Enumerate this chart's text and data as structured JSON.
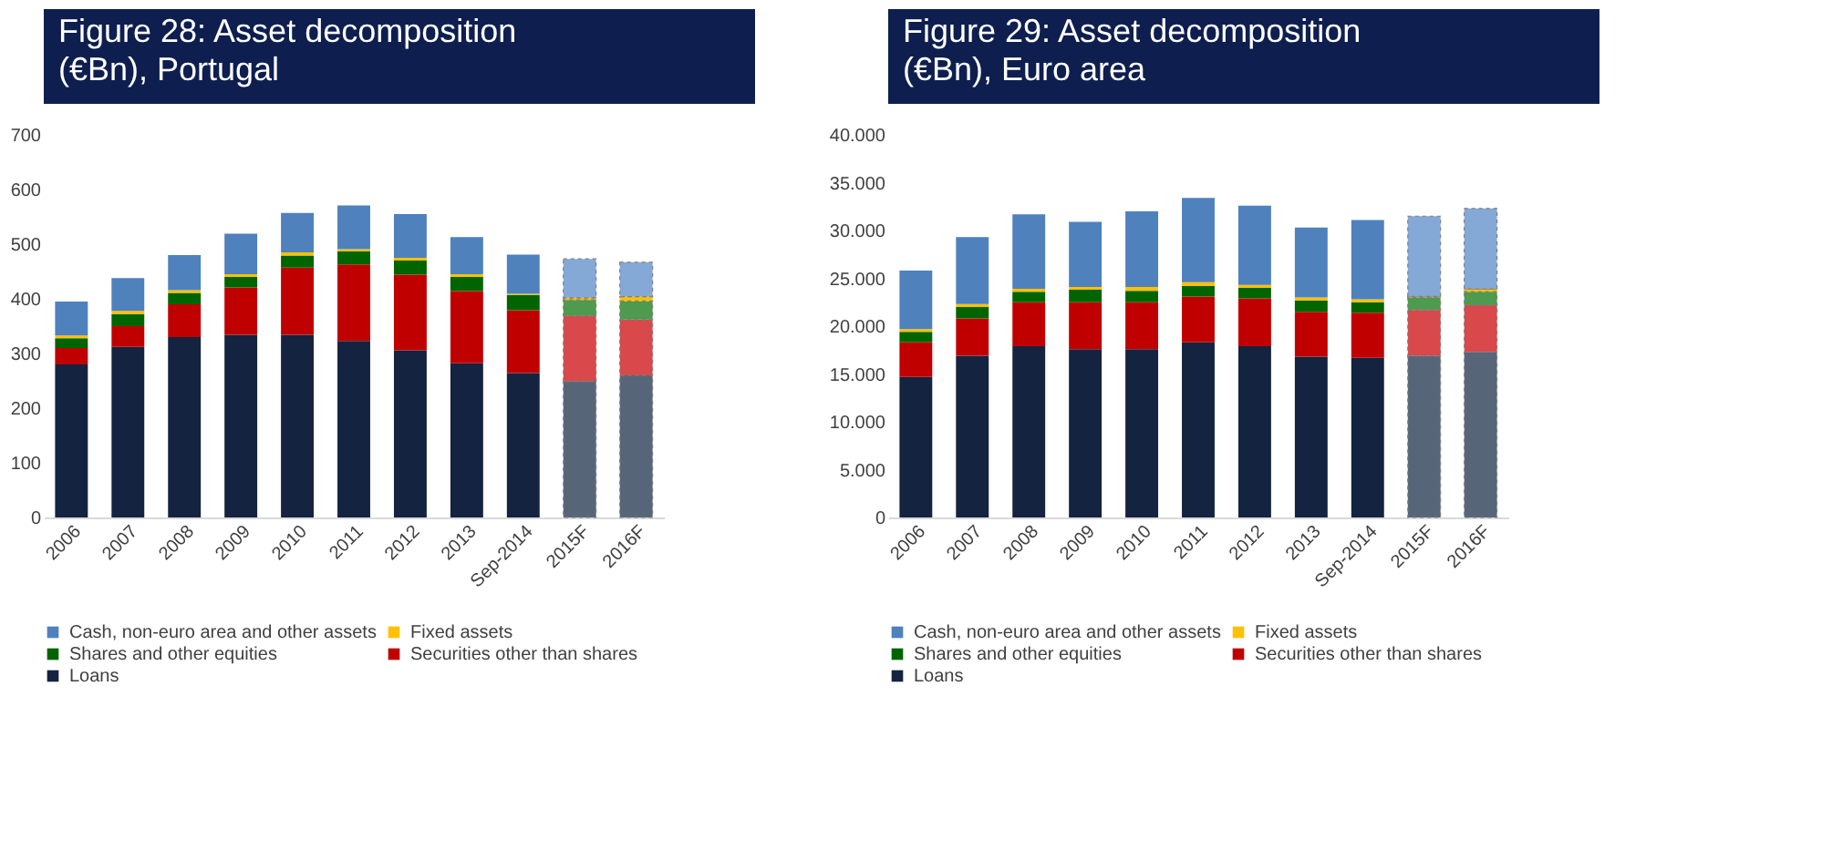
{
  "chart_data": [
    {
      "type": "bar",
      "stacked": true,
      "title": "Figure 28: Asset decomposition (€Bn), Portugal",
      "legend": "bottom",
      "grid": false,
      "categories": [
        "2006",
        "2007",
        "2008",
        "2009",
        "2010",
        "2011",
        "2012",
        "2013",
        "Sep-2014",
        "2015F",
        "2016F"
      ],
      "ylim": [
        0,
        700
      ],
      "yticks": [
        0,
        100,
        200,
        300,
        400,
        500,
        600,
        700
      ],
      "series": [
        {
          "name": "Loans",
          "color": "#14233f",
          "colors": [
            "#14233f",
            "#14233f",
            "#14233f",
            "#14233f",
            "#14233f",
            "#14233f",
            "#14233f",
            "#14233f",
            "#14233f",
            "#566678",
            "#566678"
          ],
          "values": [
            280,
            312,
            330,
            334,
            334,
            323,
            306,
            282,
            264,
            249,
            260
          ]
        },
        {
          "name": "Securities other than shares",
          "color": "#c00000",
          "colors": [
            "#c00000",
            "#c00000",
            "#c00000",
            "#c00000",
            "#c00000",
            "#c00000",
            "#c00000",
            "#c00000",
            "#c00000",
            "#d9484a",
            "#d9484a"
          ],
          "values": [
            30,
            38,
            60,
            87,
            123,
            140,
            138,
            132,
            115,
            120,
            102
          ]
        },
        {
          "name": "Shares and other equities",
          "color": "#006400",
          "colors": [
            "#006400",
            "#006400",
            "#006400",
            "#006400",
            "#006400",
            "#006400",
            "#006400",
            "#006400",
            "#006400",
            "#4e9a4e",
            "#4e9a4e"
          ],
          "values": [
            18,
            22,
            21,
            19,
            22,
            24,
            26,
            26,
            28,
            29,
            34
          ]
        },
        {
          "name": "Fixed assets",
          "color": "#ffc000",
          "colors": [
            "#ffc000",
            "#ffc000",
            "#ffc000",
            "#ffc000",
            "#ffc000",
            "#ffc000",
            "#ffc000",
            "#ffc000",
            "#ffc000",
            "#ffc000",
            "#ffc000"
          ],
          "values": [
            5,
            6,
            5,
            5,
            6,
            4,
            5,
            5,
            2,
            4,
            8
          ]
        },
        {
          "name": "Cash, non-euro area and other assets",
          "color": "#4f81bd",
          "colors": [
            "#4f81bd",
            "#4f81bd",
            "#4f81bd",
            "#4f81bd",
            "#4f81bd",
            "#4f81bd",
            "#4f81bd",
            "#4f81bd",
            "#4f81bd",
            "#85a9d6",
            "#85a9d6"
          ],
          "values": [
            62,
            60,
            64,
            74,
            72,
            80,
            80,
            68,
            72,
            71,
            63
          ]
        }
      ]
    },
    {
      "type": "bar",
      "stacked": true,
      "title": "Figure 29: Asset decomposition (€Bn), Euro area",
      "legend": "bottom",
      "grid": false,
      "categories": [
        "2006",
        "2007",
        "2008",
        "2009",
        "2010",
        "2011",
        "2012",
        "2013",
        "Sep-2014",
        "2015F",
        "2016F"
      ],
      "ylim": [
        0,
        40000
      ],
      "yticks": [
        {
          "value": 0,
          "label": "0"
        },
        {
          "value": 5000,
          "label": "5.000"
        },
        {
          "value": 10000,
          "label": "10.000"
        },
        {
          "value": 15000,
          "label": "15.000"
        },
        {
          "value": 20000,
          "label": "20.000"
        },
        {
          "value": 25000,
          "label": "25.000"
        },
        {
          "value": 30000,
          "label": "30.000"
        },
        {
          "value": 35000,
          "label": "35.000"
        },
        {
          "value": 40000,
          "label": "40.000"
        }
      ],
      "series": [
        {
          "name": "Loans",
          "color": "#14233f",
          "colors": [
            "#14233f",
            "#14233f",
            "#14233f",
            "#14233f",
            "#14233f",
            "#14233f",
            "#14233f",
            "#14233f",
            "#14233f",
            "#566678",
            "#566678"
          ],
          "values": [
            14700,
            16900,
            17900,
            17600,
            17600,
            18300,
            17900,
            16800,
            16700,
            16900,
            17300
          ]
        },
        {
          "name": "Securities other than shares",
          "color": "#c00000",
          "colors": [
            "#c00000",
            "#c00000",
            "#c00000",
            "#c00000",
            "#c00000",
            "#c00000",
            "#c00000",
            "#c00000",
            "#c00000",
            "#d9484a",
            "#d9484a"
          ],
          "values": [
            3600,
            3900,
            4600,
            4900,
            4900,
            4800,
            5000,
            4700,
            4700,
            4800,
            4900
          ]
        },
        {
          "name": "Shares and other equities",
          "color": "#006400",
          "colors": [
            "#006400",
            "#006400",
            "#006400",
            "#006400",
            "#006400",
            "#006400",
            "#006400",
            "#006400",
            "#006400",
            "#4e9a4e",
            "#4e9a4e"
          ],
          "values": [
            1100,
            1200,
            1100,
            1300,
            1200,
            1100,
            1100,
            1200,
            1100,
            1300,
            1400
          ]
        },
        {
          "name": "Fixed assets",
          "color": "#ffc000",
          "colors": [
            "#ffc000",
            "#ffc000",
            "#ffc000",
            "#ffc000",
            "#ffc000",
            "#ffc000",
            "#ffc000",
            "#ffc000",
            "#ffc000",
            "#ffc000",
            "#ffc000"
          ],
          "values": [
            300,
            300,
            300,
            300,
            400,
            400,
            300,
            300,
            300,
            100,
            300
          ]
        },
        {
          "name": "Cash, non-euro area and other assets",
          "color": "#4f81bd",
          "colors": [
            "#4f81bd",
            "#4f81bd",
            "#4f81bd",
            "#4f81bd",
            "#4f81bd",
            "#4f81bd",
            "#4f81bd",
            "#4f81bd",
            "#4f81bd",
            "#85a9d6",
            "#85a9d6"
          ],
          "values": [
            6100,
            7000,
            7800,
            6800,
            7900,
            8800,
            8300,
            7300,
            8300,
            8400,
            8400
          ]
        }
      ]
    }
  ]
}
